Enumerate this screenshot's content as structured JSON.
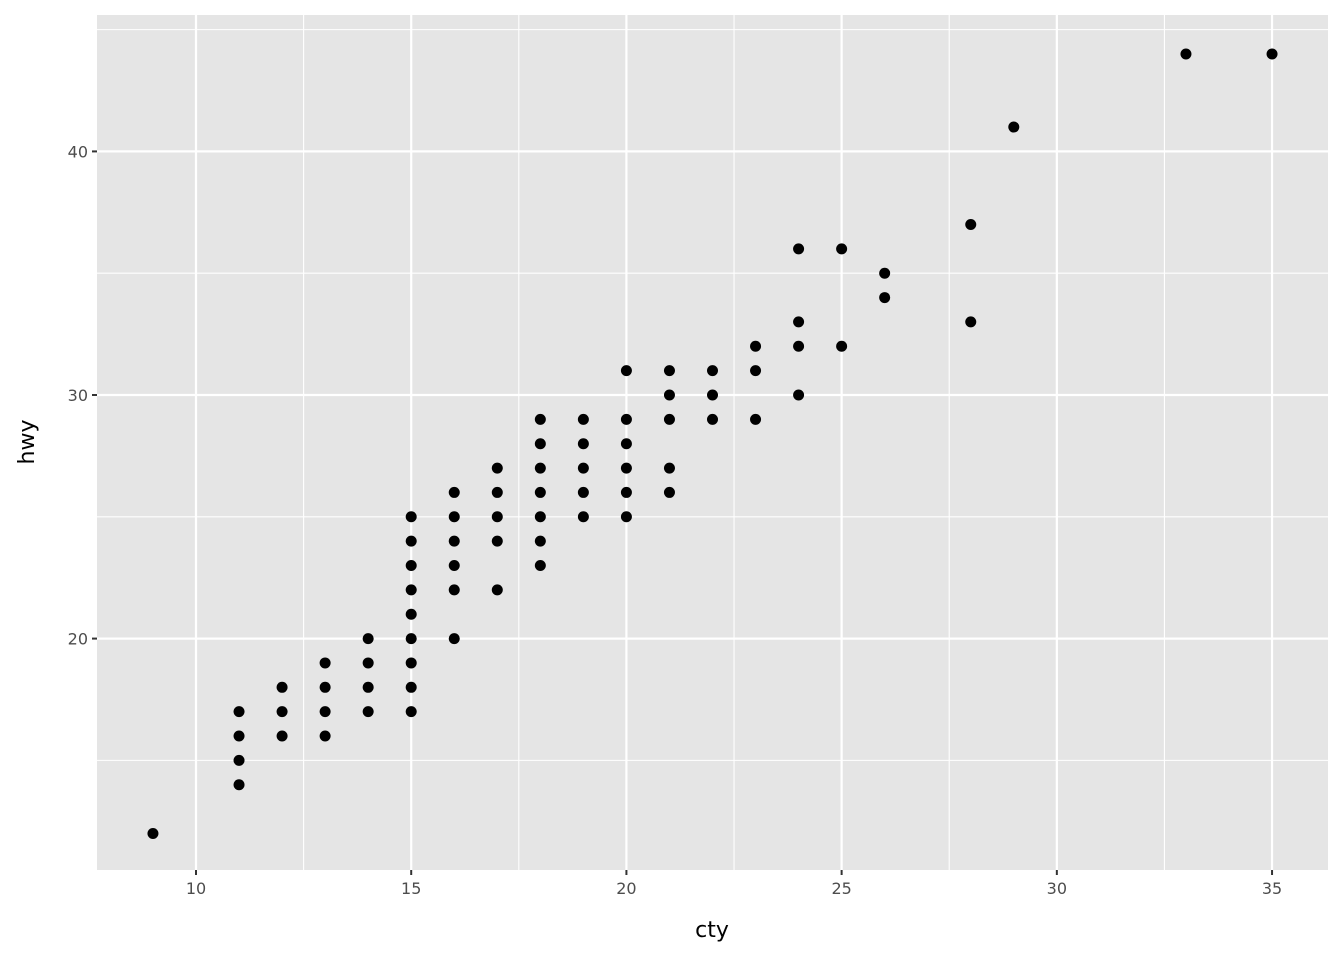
{
  "chart_data": {
    "type": "scatter",
    "title": "",
    "xlabel": "cty",
    "ylabel": "hwy",
    "xlim": [
      7.7,
      36.3
    ],
    "ylim": [
      10.5,
      45.6
    ],
    "xticks": [
      10,
      15,
      20,
      25,
      30,
      35
    ],
    "xtick_labels": [
      "10",
      "15",
      "20",
      "25",
      "30",
      "35"
    ],
    "yticks": [
      20,
      30,
      40
    ],
    "ytick_labels": [
      "20",
      "30",
      "40"
    ],
    "grid": true,
    "colors": {
      "panel": "#e5e5e5",
      "grid": "#ffffff",
      "point": "#000000"
    },
    "points": [
      [
        9,
        12
      ],
      [
        11,
        14
      ],
      [
        11,
        15
      ],
      [
        11,
        16
      ],
      [
        11,
        17
      ],
      [
        12,
        16
      ],
      [
        12,
        17
      ],
      [
        12,
        18
      ],
      [
        13,
        16
      ],
      [
        13,
        17
      ],
      [
        13,
        18
      ],
      [
        13,
        19
      ],
      [
        14,
        17
      ],
      [
        14,
        18
      ],
      [
        14,
        19
      ],
      [
        14,
        20
      ],
      [
        15,
        17
      ],
      [
        15,
        18
      ],
      [
        15,
        19
      ],
      [
        15,
        20
      ],
      [
        15,
        21
      ],
      [
        15,
        22
      ],
      [
        15,
        23
      ],
      [
        15,
        24
      ],
      [
        15,
        25
      ],
      [
        16,
        20
      ],
      [
        16,
        22
      ],
      [
        16,
        23
      ],
      [
        16,
        24
      ],
      [
        16,
        25
      ],
      [
        16,
        26
      ],
      [
        17,
        22
      ],
      [
        17,
        24
      ],
      [
        17,
        25
      ],
      [
        17,
        26
      ],
      [
        17,
        27
      ],
      [
        18,
        23
      ],
      [
        18,
        24
      ],
      [
        18,
        25
      ],
      [
        18,
        26
      ],
      [
        18,
        27
      ],
      [
        18,
        28
      ],
      [
        18,
        29
      ],
      [
        19,
        25
      ],
      [
        19,
        26
      ],
      [
        19,
        27
      ],
      [
        19,
        28
      ],
      [
        19,
        29
      ],
      [
        20,
        25
      ],
      [
        20,
        26
      ],
      [
        20,
        27
      ],
      [
        20,
        28
      ],
      [
        20,
        29
      ],
      [
        20,
        31
      ],
      [
        21,
        26
      ],
      [
        21,
        27
      ],
      [
        21,
        29
      ],
      [
        21,
        30
      ],
      [
        21,
        31
      ],
      [
        22,
        29
      ],
      [
        22,
        30
      ],
      [
        22,
        31
      ],
      [
        23,
        29
      ],
      [
        23,
        31
      ],
      [
        23,
        32
      ],
      [
        24,
        30
      ],
      [
        24,
        32
      ],
      [
        24,
        33
      ],
      [
        24,
        36
      ],
      [
        25,
        32
      ],
      [
        25,
        36
      ],
      [
        26,
        34
      ],
      [
        26,
        35
      ],
      [
        28,
        33
      ],
      [
        28,
        37
      ],
      [
        29,
        41
      ],
      [
        33,
        44
      ],
      [
        35,
        44
      ]
    ]
  }
}
